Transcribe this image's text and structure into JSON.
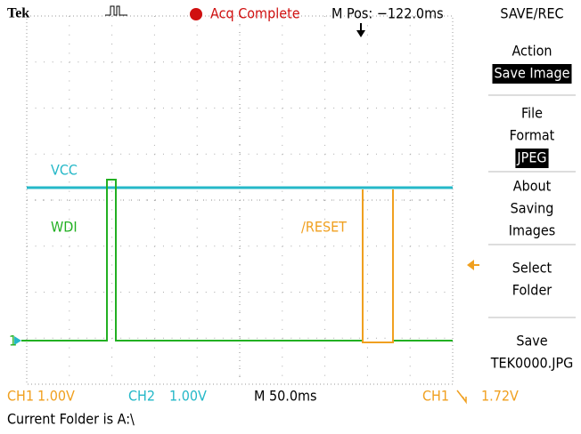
{
  "header": {
    "brand": "Tek",
    "status": "Acq Complete",
    "position": "M Pos: −122.0ms",
    "menu_title": "SAVE/REC"
  },
  "menu": [
    {
      "lines": [
        "Action"
      ],
      "selected": "Save Image"
    },
    {
      "lines": [
        "File",
        "Format"
      ],
      "selected": "JPEG"
    },
    {
      "lines": [
        "About",
        "Saving",
        "Images"
      ]
    },
    {
      "lines": [
        "Select",
        "Folder"
      ]
    },
    {
      "lines": [
        "Save",
        "TEK0000.JPG"
      ]
    }
  ],
  "traces": {
    "vcc": "VCC",
    "wdi": "WDI",
    "reset": "/RESET"
  },
  "status": {
    "ch1": "CH1",
    "ch1_scale": "1.00V",
    "ch2": "CH2",
    "ch2_scale": "1.00V",
    "timebase": "M 50.0ms",
    "trigger_source": "CH1",
    "trigger_level": "1.72V"
  },
  "footer": "Current Folder is A:\\"
}
